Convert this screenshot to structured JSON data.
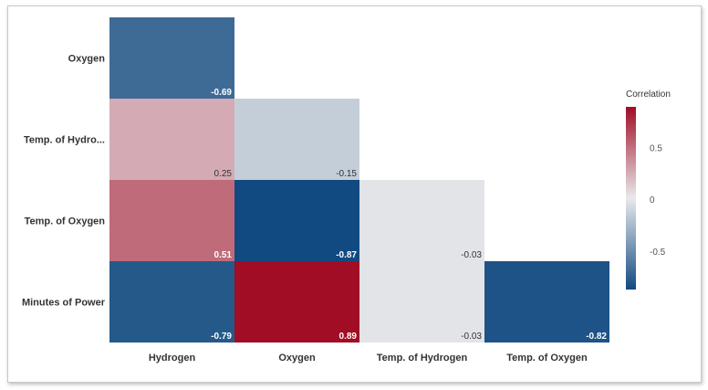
{
  "chart_data": {
    "type": "heatmap",
    "title": "",
    "xlabel": "",
    "ylabel": "",
    "x_labels": [
      "Hydrogen",
      "Oxygen",
      "Temp. of Hydrogen",
      "Temp. of Oxygen"
    ],
    "y_labels": [
      "Oxygen",
      "Temp. of Hydro...",
      "Temp. of Oxygen",
      "Minutes of Power"
    ],
    "cells": [
      {
        "row": 0,
        "col": 0,
        "value": -0.69,
        "label": "-0.69"
      },
      {
        "row": 1,
        "col": 0,
        "value": 0.25,
        "label": "0.25"
      },
      {
        "row": 1,
        "col": 1,
        "value": -0.15,
        "label": "-0.15"
      },
      {
        "row": 2,
        "col": 0,
        "value": 0.51,
        "label": "0.51"
      },
      {
        "row": 2,
        "col": 1,
        "value": -0.87,
        "label": "-0.87"
      },
      {
        "row": 2,
        "col": 2,
        "value": -0.03,
        "label": "-0.03"
      },
      {
        "row": 3,
        "col": 0,
        "value": -0.79,
        "label": "-0.79"
      },
      {
        "row": 3,
        "col": 1,
        "value": 0.89,
        "label": "0.89"
      },
      {
        "row": 3,
        "col": 2,
        "value": -0.03,
        "label": "-0.03"
      },
      {
        "row": 3,
        "col": 3,
        "value": -0.82,
        "label": "-0.82"
      }
    ],
    "legend": {
      "title": "Correlation",
      "position": "right",
      "range": [
        -0.87,
        0.89
      ],
      "ticks": [
        {
          "value": 0.5,
          "label": "0.5"
        },
        {
          "value": 0,
          "label": "0"
        },
        {
          "value": -0.5,
          "label": "-0.5"
        }
      ],
      "colors": {
        "negative": "#114a80",
        "neutral": "#e9e9ec",
        "positive": "#a00d25"
      }
    },
    "grid": false
  }
}
